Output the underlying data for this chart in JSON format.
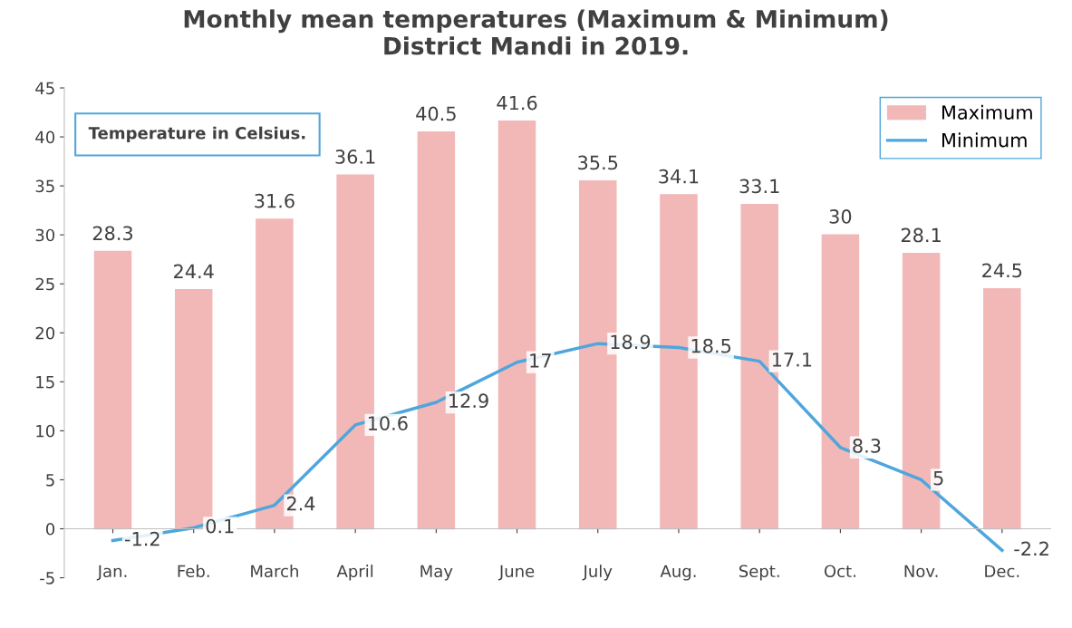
{
  "chart_data": {
    "type": "bar",
    "title": "Monthly mean temperatures (Maximum & Minimum)\nDistrict Mandi in 2019.",
    "categories": [
      "Jan.",
      "Feb.",
      "March",
      "April",
      "May",
      "June",
      "July",
      "Aug.",
      "Sept.",
      "Oct.",
      "Nov.",
      "Dec."
    ],
    "series": [
      {
        "name": "Maximum",
        "type": "bar",
        "color": "#f2b8b8",
        "values": [
          28.3,
          24.4,
          31.6,
          36.1,
          40.5,
          41.6,
          35.5,
          34.1,
          33.1,
          30,
          28.1,
          24.5
        ]
      },
      {
        "name": "Minimum",
        "type": "line",
        "color": "#4ea6dc",
        "values": [
          -1.2,
          0.1,
          2.4,
          10.6,
          12.9,
          17,
          18.9,
          18.5,
          17.1,
          8.3,
          5,
          -2.2
        ]
      }
    ],
    "ylim": [
      -5,
      45
    ],
    "yticks": [
      -5,
      0,
      5,
      10,
      15,
      20,
      25,
      30,
      35,
      40,
      45
    ],
    "annotations": [
      "Temperature in Celsius."
    ],
    "data_labels": true,
    "legend": "top right",
    "grid": false,
    "marker": "none",
    "line_style": "solid"
  }
}
